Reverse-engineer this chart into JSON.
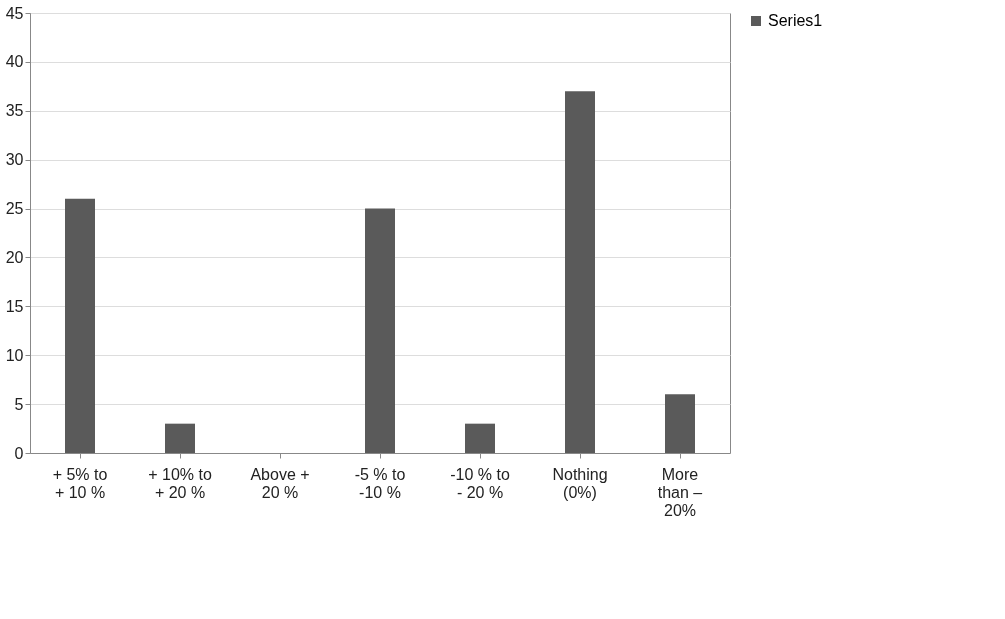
{
  "chart_data": {
    "type": "bar",
    "categories": [
      "+ 5% to\n+ 10 %",
      "+ 10% to\n+ 20 %",
      "Above +\n20 %",
      "-5 % to\n-10 %",
      "-10 % to\n- 20 %",
      "Nothing\n(0%)",
      "More\nthan –\n20%"
    ],
    "series": [
      {
        "name": "Series1",
        "color": "#5a5a5a",
        "values": [
          26,
          3,
          0,
          25,
          3,
          37,
          6
        ]
      }
    ],
    "ylim": [
      0,
      45
    ],
    "yticks": [
      0,
      5,
      10,
      15,
      20,
      25,
      30,
      35,
      40,
      45
    ],
    "grid": "y",
    "legend": "right"
  }
}
